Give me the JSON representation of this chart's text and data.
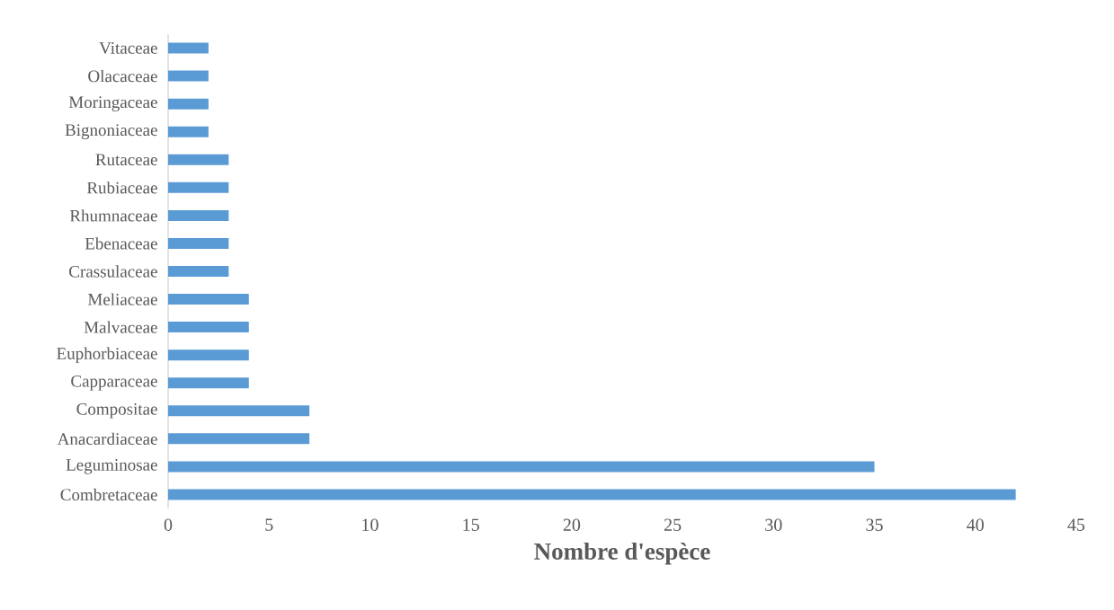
{
  "chart_data": {
    "type": "bar",
    "orientation": "horizontal",
    "xlabel": "Nombre d'espèce",
    "categories": [
      "Vitaceae",
      "Olacaceae",
      "Moringaceae",
      "Bignoniaceae",
      "Rutaceae",
      "Rubiaceae",
      "Rhumnaceae",
      "Ebenaceae",
      "Crassulaceae",
      "Meliaceae",
      "Malvaceae",
      "Euphorbiaceae",
      "Capparaceae",
      "Compositae",
      "Anacardiaceae",
      "Leguminosae",
      "Combretaceae"
    ],
    "values": [
      2,
      2,
      2,
      2,
      3,
      3,
      3,
      3,
      3,
      4,
      4,
      4,
      4,
      7,
      7,
      35,
      42
    ],
    "color": "#5b9bd5",
    "xlim": [
      0,
      45
    ],
    "xticks": [
      0,
      5,
      10,
      15,
      20,
      25,
      30,
      35,
      40,
      45
    ]
  }
}
